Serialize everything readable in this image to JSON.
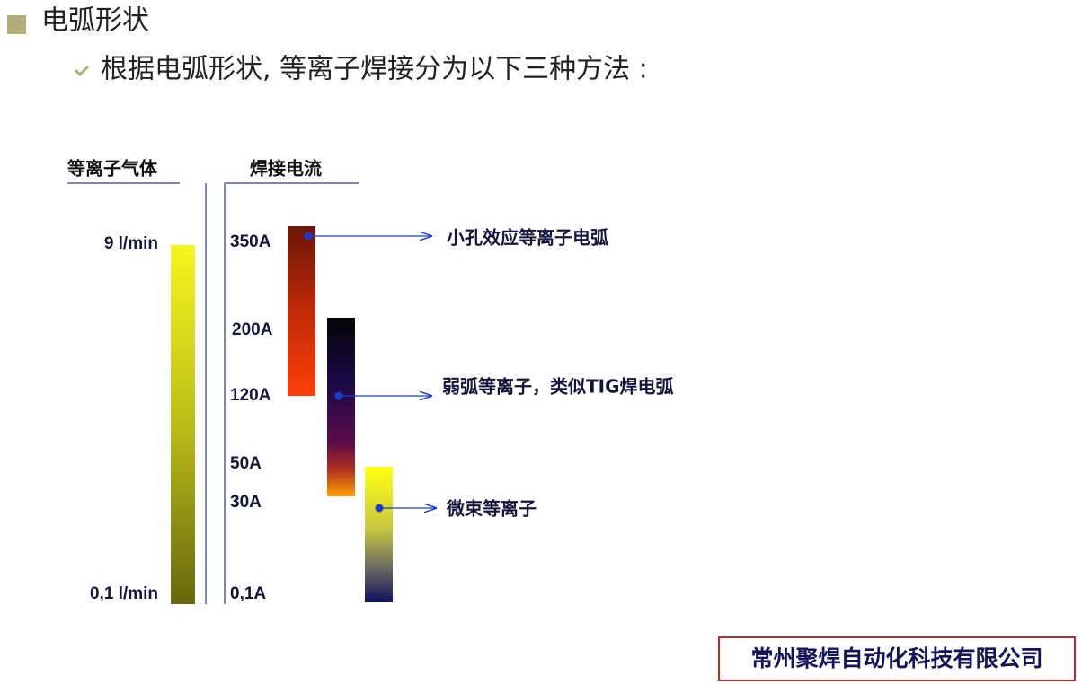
{
  "header": {
    "title": "电弧形状",
    "subtitle": "根据电弧形状, 等离子焊接分为以下三种方法 :"
  },
  "diagram": {
    "gas_header": "等离子气体",
    "current_header": "焊接电流",
    "gas_labels": [
      "9 l/min",
      "0,1 l/min"
    ],
    "current_labels": [
      "350A",
      "200A",
      "120A",
      "50A",
      "30A",
      "0,1A"
    ],
    "methods": [
      "小孔效应等离子电弧",
      "弱弧等离子，类似TIG焊电弧",
      "微束等离子"
    ]
  },
  "footer": {
    "company": "常州聚焊自动化科技有限公司"
  }
}
